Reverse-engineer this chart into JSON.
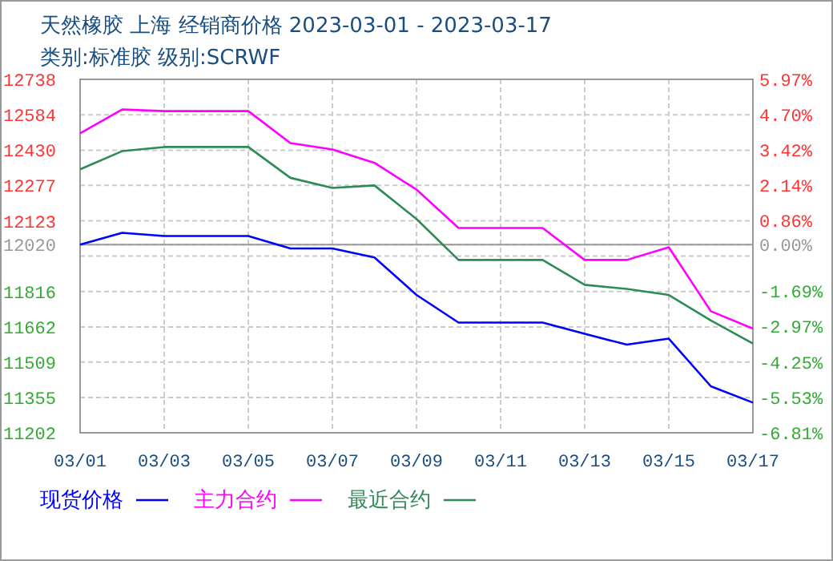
{
  "chart_data": {
    "type": "line",
    "title": "天然橡胶 上海 经销商价格 2023-03-01 - 2023-03-17",
    "subtitle": "类别:标准胶 级别:SCRWF",
    "x": [
      "--03-01",
      "--03-02",
      "--03-03",
      "--03-04",
      "--03-05",
      "--03-06",
      "--03-07",
      "--03-08",
      "--03-09",
      "--03-10",
      "--03-11",
      "--03-12",
      "--03-13",
      "--03-14",
      "--03-15",
      "--03-16",
      "--03-17"
    ],
    "series": [
      {
        "name": "现货价格",
        "color": "#0000ff",
        "values": [
          12020,
          12071,
          12057,
          12057,
          12057,
          12003,
          12003,
          11964,
          11801,
          11681,
          11681,
          11681,
          11632,
          11585,
          11611,
          11404,
          11333
        ]
      },
      {
        "name": "主力合约",
        "color": "#ff00ff",
        "values": [
          12503,
          12607,
          12600,
          12600,
          12600,
          12461,
          12433,
          12375,
          12259,
          12092,
          12092,
          12092,
          11953,
          11953,
          12008,
          11730,
          11655
        ]
      },
      {
        "name": "最近合约",
        "color": "#2e8b57",
        "values": [
          12347,
          12426,
          12444,
          12444,
          12444,
          12310,
          12266,
          12277,
          12131,
          11953,
          11953,
          11953,
          11845,
          11827,
          11801,
          11690,
          11590
        ]
      }
    ],
    "xlim": [
      "--03-01",
      "--03-17"
    ],
    "xticks": [
      {
        "value": "--03-01",
        "label": "03/01"
      },
      {
        "value": "--03-03",
        "label": "03/03"
      },
      {
        "value": "--03-05",
        "label": "03/05"
      },
      {
        "value": "--03-07",
        "label": "03/07"
      },
      {
        "value": "--03-09",
        "label": "03/09"
      },
      {
        "value": "--03-11",
        "label": "03/11"
      },
      {
        "value": "--03-13",
        "label": "03/13"
      },
      {
        "value": "--03-15",
        "label": "03/15"
      },
      {
        "value": "--03-17",
        "label": "03/17"
      }
    ],
    "ylim": [
      11202,
      12738
    ],
    "yticks": [
      11202,
      11355,
      11509,
      11662,
      11816,
      {
        "value": 11970,
        "label": null
      },
      12020,
      12123,
      12277,
      12430,
      12584,
      12738
    ],
    "y2lim": [
      -6.81,
      5.97
    ],
    "y2ticks": [
      {
        "value": -6.81,
        "label": "-6.81%"
      },
      {
        "value": -5.53,
        "label": "-5.53%"
      },
      {
        "value": -4.25,
        "label": "-4.25%"
      },
      {
        "value": -2.97,
        "label": "-2.97%"
      },
      {
        "value": -1.69,
        "label": "-1.69%"
      },
      {
        "value": 0,
        "label": "0.00%"
      },
      {
        "value": 0.86,
        "label": "0.86%"
      },
      {
        "value": 2.14,
        "label": "2.14%"
      },
      {
        "value": 3.42,
        "label": "3.42%"
      },
      {
        "value": 4.7,
        "label": "4.70%"
      },
      {
        "value": 5.97,
        "label": "5.97%"
      }
    ],
    "ref_lines": [
      {
        "axis": "y",
        "value": 12020,
        "color": "#999999"
      }
    ],
    "grid": true,
    "legend": "bottom",
    "line_style": "solid",
    "marker": "none"
  }
}
